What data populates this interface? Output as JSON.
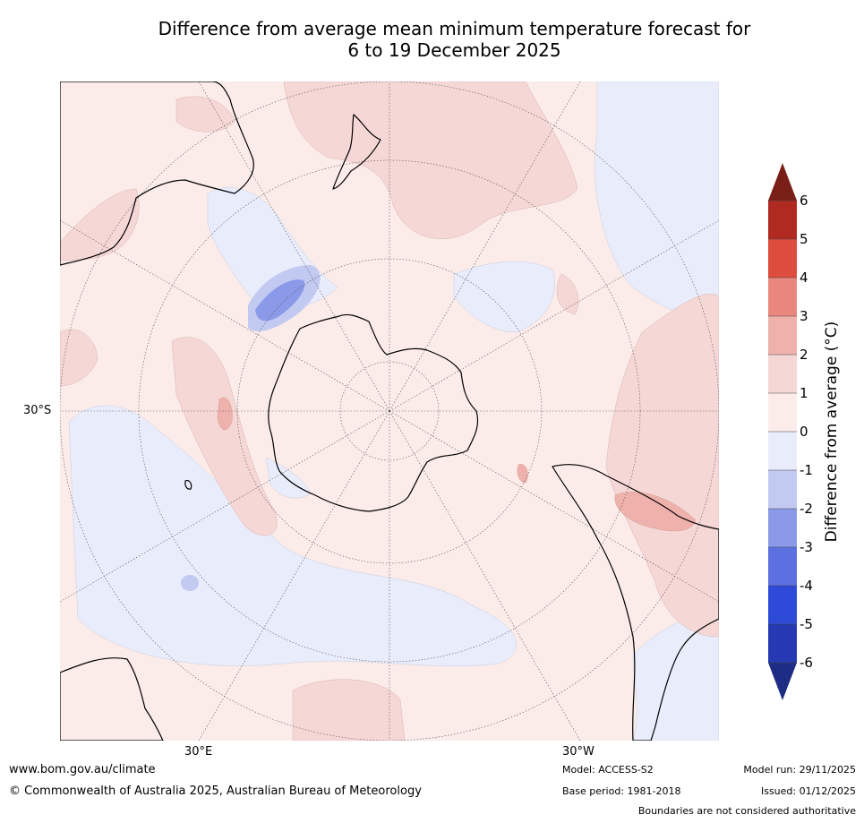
{
  "title": {
    "line1": "Difference from average mean minimum temperature forecast for",
    "line2": "6 to 19 December 2025"
  },
  "axis_labels": {
    "lat": "30°S",
    "lon_east": "30°E",
    "lon_west": "30°W"
  },
  "colorbar": {
    "title": "Difference from average (°C)",
    "ticks": [
      "6",
      "5",
      "4",
      "3",
      "2",
      "1",
      "0",
      "-1",
      "-2",
      "-3",
      "-4",
      "-5",
      "-6"
    ],
    "colors": {
      "above_6": "#7a1f17",
      "5_to_6": "#b02a22",
      "4_to_5": "#de4c3e",
      "3_to_4": "#e9877f",
      "2_to_3": "#efb1ab",
      "1_to_2": "#f5d7d5",
      "0_to_1": "#fbecea",
      "-1_to_0": "#e9ecfb",
      "-2_to_-1": "#c3caf2",
      "-3_to_-2": "#8a9ae9",
      "-4_to_-3": "#5d70e2",
      "-5_to_-4": "#2e4ad9",
      "-6_to_-5": "#2539b2",
      "below_-6": "#1e2d84"
    }
  },
  "footer": {
    "url": "www.bom.gov.au/climate",
    "copyright": "© Commonwealth of Australia 2025, Australian Bureau of Meteorology",
    "model": "Model: ACCESS-S2",
    "base_period": "Base period: 1981-2018",
    "model_run": "Model run: 29/11/2025",
    "issued": "Issued: 01/12/2025",
    "disclaimer": "Boundaries are not considered authoritative"
  }
}
